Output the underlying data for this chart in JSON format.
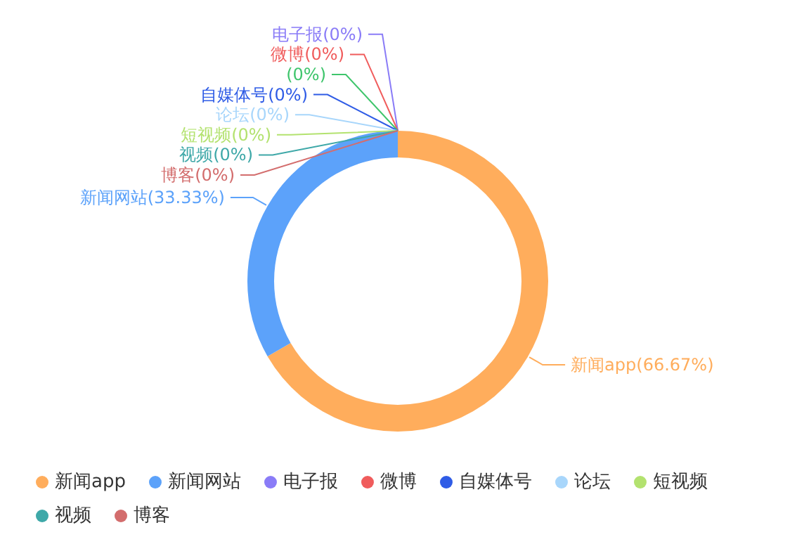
{
  "chart_data": {
    "type": "donut",
    "categories": [
      "新闻app",
      "新闻网站",
      "电子报",
      "微博",
      null,
      "自媒体号",
      "论坛",
      "短视频",
      "视频",
      "博客"
    ],
    "values": [
      66.67,
      33.33,
      0,
      0,
      0,
      0,
      0,
      0,
      0,
      0
    ],
    "colors": [
      "#ffad5c",
      "#5ca2fa",
      "#8a7cf7",
      "#f05c5c",
      "#3fc56c",
      "#2f5ce6",
      "#a8d6fb",
      "#b3e26f",
      "#3ea8a8",
      "#d36d6d"
    ],
    "value_labels": [
      "(66.67%)",
      "(33.33%)",
      "(0%)",
      "(0%)",
      "(0%)",
      "(0%)",
      "(0%)",
      "(0%)",
      "(0%)",
      "(0%)"
    ],
    "legend": "bottom"
  }
}
